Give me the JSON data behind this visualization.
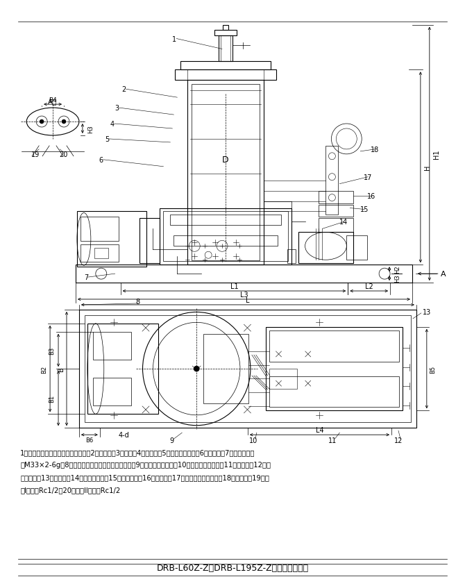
{
  "title": "DRB-L60Z-Z、DRB-L195Z-Z型电动泵外形图",
  "bg_color": "#ffffff",
  "line_color": "#000000",
  "description_lines": [
    "1、排气阀（贮油器活塞下部空气）；2、贮油器；3、泵体；4、排气塞；5、润滑油注入口；6、油位计；7、润滑脂补给",
    "口M33×2-6g；8、排气阀（贮油器活塞下部空气）；9、贮油器低位开关；10、贮油器高位开关；11、接线盒；12、贮",
    "油器接口；13、泵接口；14、电磁换向阀；15、放油螺塞；16、安全阀；17、排气阀（出油口）；18、压力表；19、管",
    "路I出油口Rc1/2；20、管路II出油口Rc1/2"
  ],
  "figsize": [
    6.7,
    8.45
  ],
  "dpi": 100
}
